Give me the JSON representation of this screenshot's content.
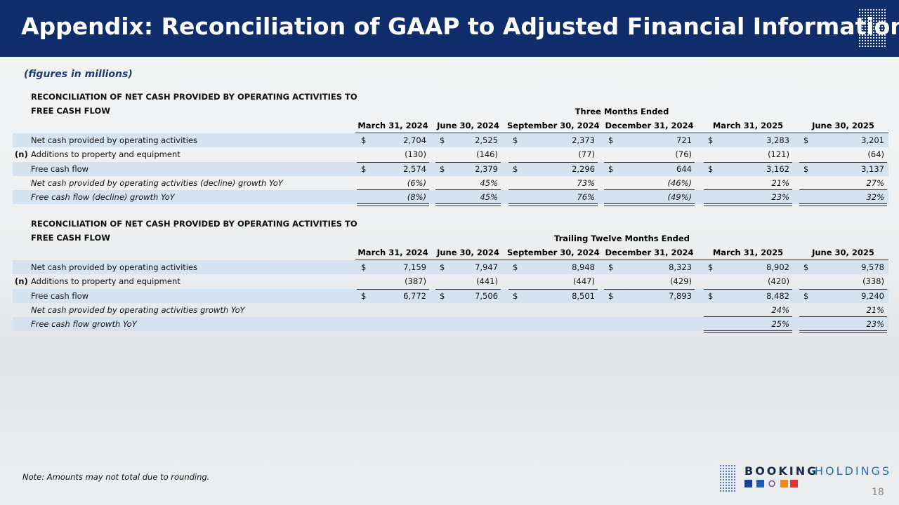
{
  "header": {
    "title": "Appendix: Reconciliation of GAAP to Adjusted Financial Information"
  },
  "subtitle": "(figures in millions)",
  "tables": [
    {
      "heading": [
        "RECONCILIATION OF NET CASH PROVIDED BY OPERATING ACTIVITIES TO",
        "FREE CASH FLOW"
      ],
      "period": "Three Months Ended",
      "columns": [
        "March 31, 2024",
        "June 30, 2024",
        "September 30, 2024",
        "December 31, 2024",
        "March 31, 2025",
        "June 30, 2025"
      ],
      "rows": [
        {
          "label": "Net cash provided by operating activities",
          "currency": "$",
          "cells": [
            "2,704",
            "2,525",
            "2,373",
            "721",
            "3,283",
            "3,201"
          ]
        },
        {
          "marker": "(n)",
          "label": "Additions to property and equipment",
          "cells": [
            "(130)",
            "(146)",
            "(77)",
            "(76)",
            "(121)",
            "(64)"
          ]
        },
        {
          "label": "Free cash flow",
          "currency": "$",
          "cells": [
            "2,574",
            "2,379",
            "2,296",
            "644",
            "3,162",
            "3,137"
          ]
        },
        {
          "label": "Net cash provided by operating activities (decline) growth YoY",
          "cells": [
            "(6%)",
            "45%",
            "73%",
            "(46%)",
            "21%",
            "27%"
          ]
        },
        {
          "label": "Free cash flow (decline) growth YoY",
          "cells": [
            "(8%)",
            "45%",
            "76%",
            "(49%)",
            "23%",
            "32%"
          ]
        }
      ]
    },
    {
      "heading": [
        "RECONCILIATION OF NET CASH PROVIDED BY OPERATING ACTIVITIES TO",
        "FREE CASH FLOW"
      ],
      "period": "Trailing Twelve Months Ended",
      "columns": [
        "March 31, 2024",
        "June 30, 2024",
        "September 30, 2024",
        "December 31, 2024",
        "March 31, 2025",
        "June 30, 2025"
      ],
      "rows": [
        {
          "label": "Net cash provided by operating activities",
          "currency": "$",
          "cells": [
            "7,159",
            "7,947",
            "8,948",
            "8,323",
            "8,902",
            "9,578"
          ]
        },
        {
          "marker": "(n)",
          "label": "Additions to property and equipment",
          "cells": [
            "(387)",
            "(441)",
            "(447)",
            "(429)",
            "(420)",
            "(338)"
          ]
        },
        {
          "label": "Free cash flow",
          "currency": "$",
          "cells": [
            "6,772",
            "7,506",
            "8,501",
            "7,893",
            "8,482",
            "9,240"
          ]
        },
        {
          "label": "Net cash provided by operating activities growth YoY",
          "cells": [
            null,
            null,
            null,
            null,
            "24%",
            "21%"
          ]
        },
        {
          "label": "Free cash flow growth YoY",
          "cells": [
            null,
            null,
            null,
            null,
            "25%",
            "23%"
          ]
        }
      ]
    }
  ],
  "footer": {
    "note": "Note: Amounts may not total due to rounding.",
    "logo": [
      "BOOKING",
      "HOLDINGS"
    ],
    "page": "18"
  }
}
